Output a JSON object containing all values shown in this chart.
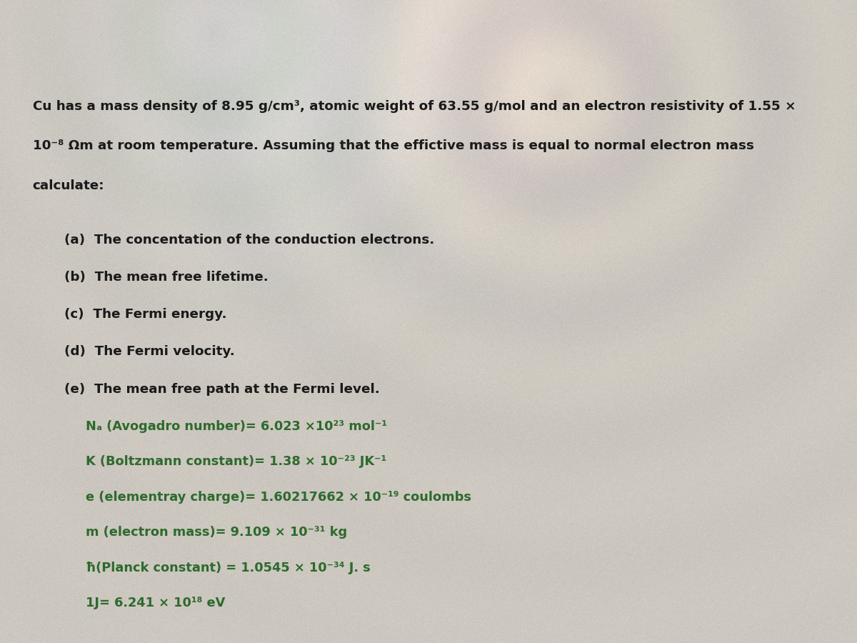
{
  "bg_base": "#ccc8c0",
  "bg_light": "#dedad4",
  "text_color_black": "#1a1a1a",
  "text_color_green": "#2d6a2d",
  "intro_lines": [
    "Cu has a mass density of 8.95 g/cm³, atomic weight of 63.55 g/mol and an electron resistivity of 1.55 ×",
    "10⁻⁸ Ωm at room temperature. Assuming that the effictive mass is equal to normal electron mass",
    "calculate:"
  ],
  "items": [
    "(a)  The concentation of the conduction electrons.",
    "(b)  The mean free lifetime.",
    "(c)  The Fermi energy.",
    "(d)  The Fermi velocity.",
    "(e)  The mean free path at the Fermi level."
  ],
  "constants": [
    "Nₐ (Avogadro number)= 6.023 ×10²³ mol⁻¹",
    "K (Boltzmann constant)= 1.38 × 10⁻²³ JK⁻¹",
    "e (elementray charge)= 1.60217662 × 10⁻¹⁹ coulombs",
    "m (electron mass)= 9.109 × 10⁻³¹ kg",
    "ħ(Planck constant) = 1.0545 × 10⁻³⁴ J. s",
    "1J= 6.241 × 10¹⁸ eV"
  ],
  "figsize": [
    12.0,
    9.0
  ],
  "dpi": 100,
  "intro_fontsize": 13.2,
  "item_fontsize": 13.2,
  "const_fontsize": 12.8
}
